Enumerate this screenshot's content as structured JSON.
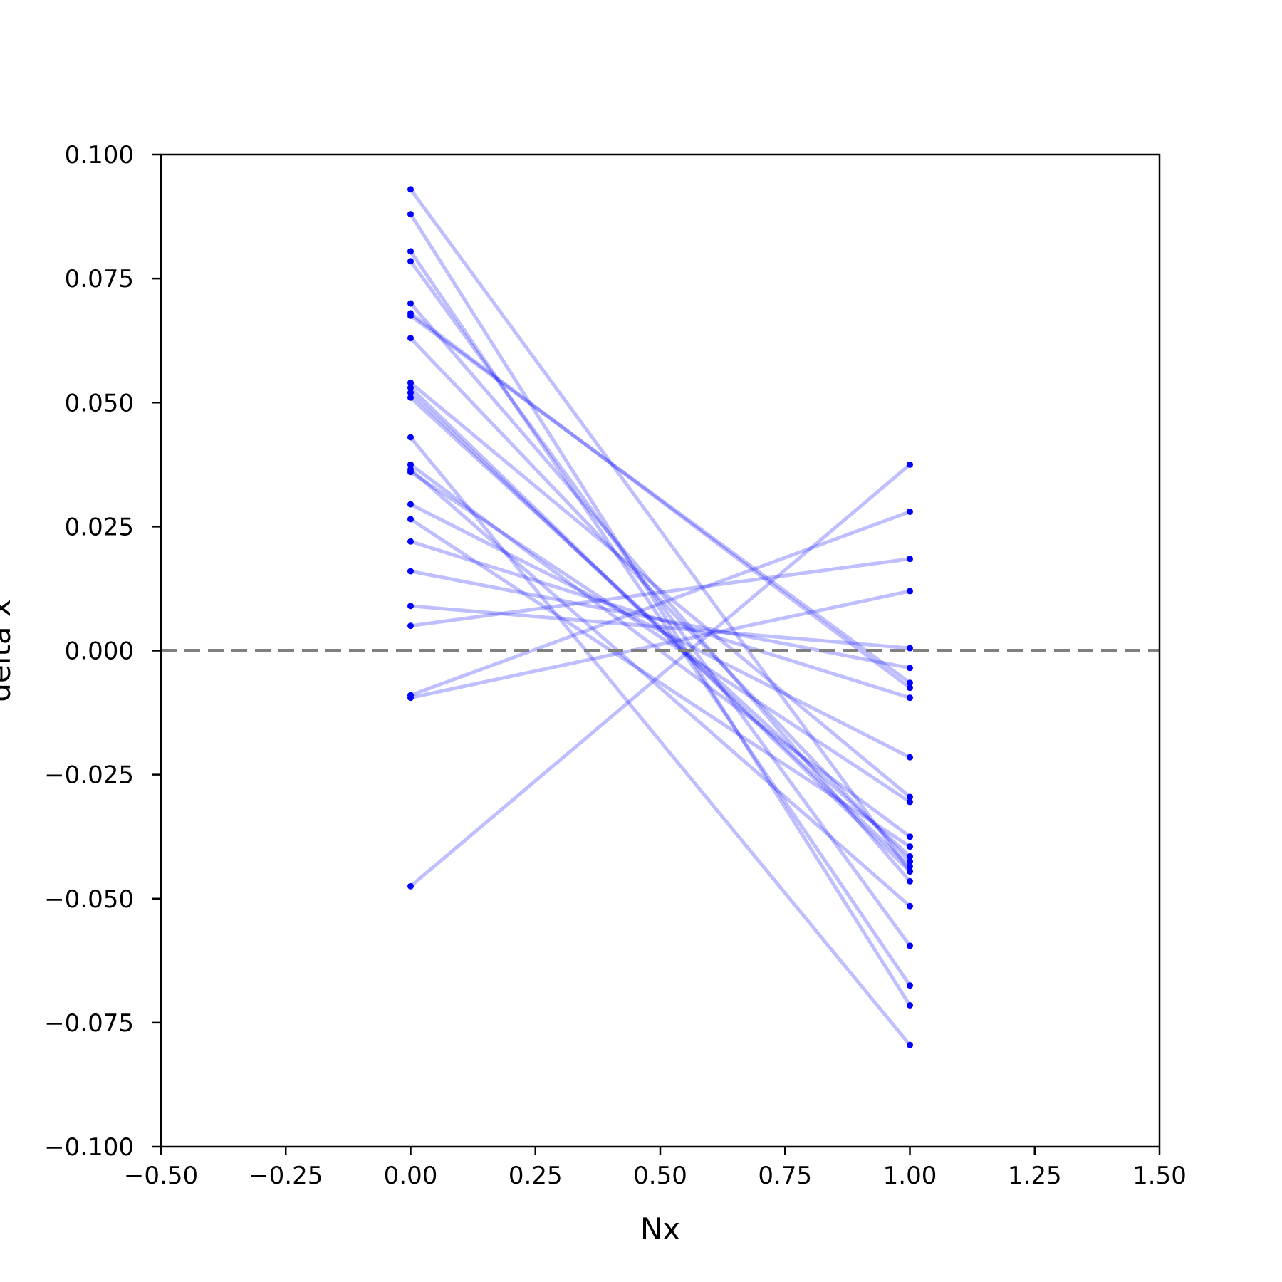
{
  "chart_data": {
    "type": "line",
    "title": "",
    "xlabel": "Nx",
    "ylabel": "delta x",
    "xlim": [
      -0.5,
      1.5
    ],
    "ylim": [
      -0.1,
      0.1
    ],
    "grid": false,
    "legend": "none",
    "x_ticks": [
      -0.5,
      -0.25,
      0.0,
      0.25,
      0.5,
      0.75,
      1.0,
      1.25,
      1.5
    ],
    "x_tick_labels": [
      "−0.50",
      "−0.25",
      "0.00",
      "0.25",
      "0.50",
      "0.75",
      "1.00",
      "1.25",
      "1.50"
    ],
    "y_ticks": [
      0.1,
      0.075,
      0.05,
      0.025,
      0.0,
      -0.025,
      -0.05,
      -0.075,
      -0.1
    ],
    "y_tick_labels": [
      "0.100",
      "0.075",
      "0.050",
      "0.025",
      "0.000",
      "−0.025",
      "−0.050",
      "−0.075",
      "−0.100"
    ],
    "line_color": "#0000ff",
    "line_opacity": 0.25,
    "reference_line": {
      "y": 0.0,
      "style": "dashed",
      "color": "#808080"
    },
    "x": [
      0.0,
      1.0
    ],
    "pairs": [
      [
        0.093,
        -0.0445
      ],
      [
        0.088,
        -0.0715
      ],
      [
        0.0805,
        -0.0675
      ],
      [
        0.0785,
        -0.0595
      ],
      [
        0.07,
        -0.0465
      ],
      [
        0.068,
        -0.0075
      ],
      [
        0.0675,
        -0.0065
      ],
      [
        0.063,
        -0.0425
      ],
      [
        0.054,
        -0.0295
      ],
      [
        0.053,
        -0.0445
      ],
      [
        0.052,
        -0.0435
      ],
      [
        0.051,
        -0.0415
      ],
      [
        0.043,
        -0.0795
      ],
      [
        0.0375,
        -0.0375
      ],
      [
        0.0365,
        -0.0515
      ],
      [
        0.036,
        -0.0305
      ],
      [
        0.0295,
        -0.0215
      ],
      [
        0.0265,
        -0.0395
      ],
      [
        0.022,
        -0.0095
      ],
      [
        0.016,
        -0.0035
      ],
      [
        0.009,
        0.0005
      ],
      [
        0.005,
        0.0185
      ],
      [
        -0.009,
        0.028
      ],
      [
        -0.0095,
        0.012
      ],
      [
        -0.0475,
        0.0375
      ]
    ]
  }
}
